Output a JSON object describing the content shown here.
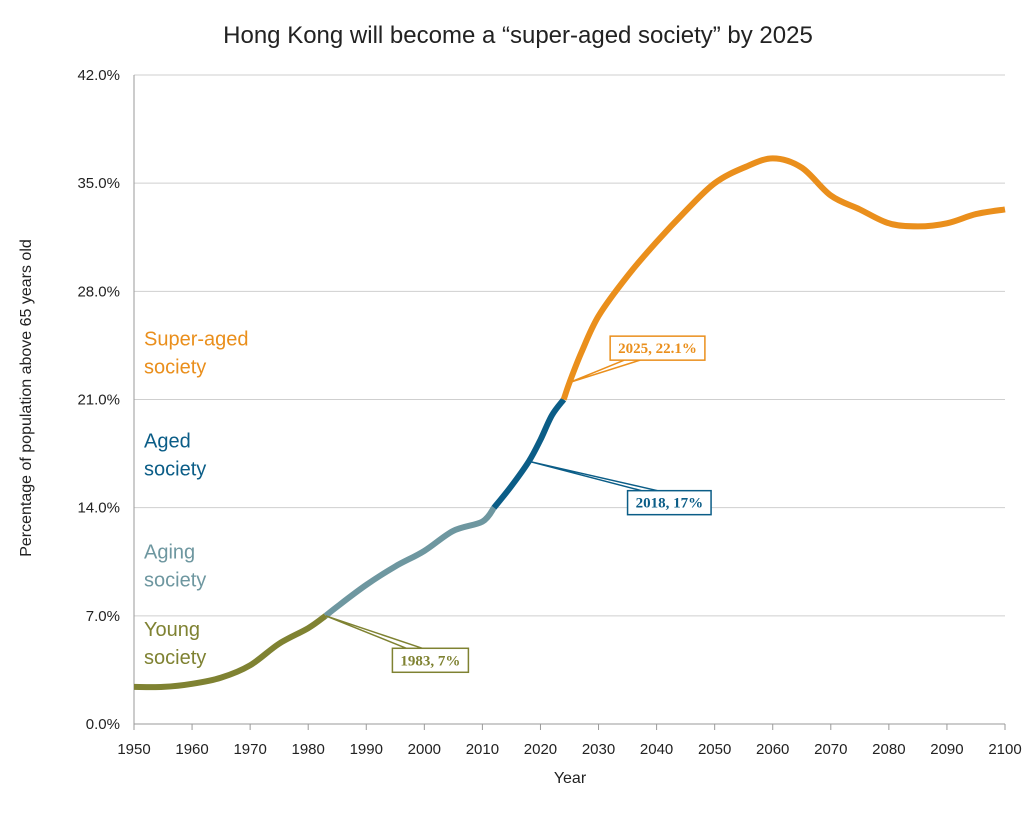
{
  "chart_data": {
    "type": "line",
    "title": "Hong Kong will become a “super-aged society” by 2025",
    "xlabel": "Year",
    "ylabel": "Percentage of population above 65 years old",
    "xlim": [
      1950,
      2100
    ],
    "ylim": [
      0,
      42
    ],
    "x_ticks": [
      "1950",
      "1960",
      "1970",
      "1980",
      "1990",
      "2000",
      "2010",
      "2020",
      "2030",
      "2040",
      "2050",
      "2060",
      "2070",
      "2080",
      "2090",
      "2100"
    ],
    "y_ticks": [
      "0.0%",
      "7.0%",
      "14.0%",
      "21.0%",
      "28.0%",
      "35.0%",
      "42.0%"
    ],
    "grid": true,
    "series": [
      {
        "name": "Young society",
        "color": "#7f8232",
        "points": [
          [
            1950,
            2.4
          ],
          [
            1955,
            2.4
          ],
          [
            1960,
            2.6
          ],
          [
            1965,
            3.0
          ],
          [
            1970,
            3.8
          ],
          [
            1975,
            5.2
          ],
          [
            1980,
            6.2
          ],
          [
            1983,
            7.0
          ]
        ]
      },
      {
        "name": "Aging society",
        "color": "#6e97a0",
        "points": [
          [
            1983,
            7.0
          ],
          [
            1985,
            7.6
          ],
          [
            1990,
            9.0
          ],
          [
            1995,
            10.2
          ],
          [
            2000,
            11.2
          ],
          [
            2005,
            12.5
          ],
          [
            2010,
            13.1
          ],
          [
            2012,
            14.0
          ]
        ]
      },
      {
        "name": "Aged society",
        "color": "#0b5d87",
        "points": [
          [
            2012,
            14.0
          ],
          [
            2015,
            15.4
          ],
          [
            2018,
            17.0
          ],
          [
            2020,
            18.4
          ],
          [
            2022,
            20.0
          ],
          [
            2024,
            21.0
          ]
        ]
      },
      {
        "name": "Super-aged society",
        "color": "#ea8f1c",
        "points": [
          [
            2024,
            21.0
          ],
          [
            2025,
            22.1
          ],
          [
            2027,
            24.0
          ],
          [
            2030,
            26.4
          ],
          [
            2035,
            29.0
          ],
          [
            2040,
            31.2
          ],
          [
            2045,
            33.2
          ],
          [
            2050,
            35.0
          ],
          [
            2055,
            36.0
          ],
          [
            2060,
            36.6
          ],
          [
            2065,
            36.0
          ],
          [
            2070,
            34.2
          ],
          [
            2075,
            33.3
          ],
          [
            2080,
            32.4
          ],
          [
            2085,
            32.2
          ],
          [
            2090,
            32.4
          ],
          [
            2095,
            33.0
          ],
          [
            2100,
            33.3
          ]
        ]
      }
    ],
    "region_labels": [
      {
        "lines": [
          "Super-aged",
          "society"
        ],
        "color": "#ea8f1c",
        "y": 24.5
      },
      {
        "lines": [
          "Aged",
          "society"
        ],
        "color": "#0b5d87",
        "y": 17.9
      },
      {
        "lines": [
          "Aging",
          "society"
        ],
        "color": "#6e97a0",
        "y": 10.7
      },
      {
        "lines": [
          "Young",
          "society"
        ],
        "color": "#7f8232",
        "y": 5.7
      }
    ],
    "annotations": [
      {
        "text": "2025, 22.1%",
        "color": "#ea8f1c",
        "point": [
          2025,
          22.1
        ],
        "box_x": 2032.0,
        "box_y": 25.1
      },
      {
        "text": "2018, 17%",
        "color": "#0b5d87",
        "point": [
          2018,
          17.0
        ],
        "box_x": 2035.0,
        "box_y": 15.1
      },
      {
        "text": "1983, 7%",
        "color": "#7f8232",
        "point": [
          1983,
          7.0
        ],
        "box_x": 1994.5,
        "box_y": 4.9
      }
    ]
  }
}
